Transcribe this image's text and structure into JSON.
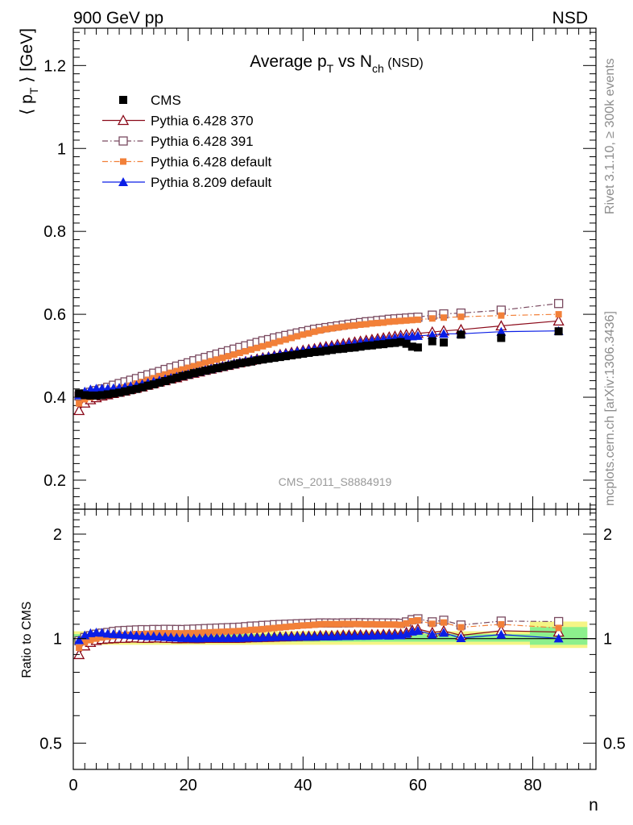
{
  "header": {
    "left": "900 GeV pp",
    "right": "NSD"
  },
  "side_labels": {
    "rivet": "Rivet 3.1.10, ≥ 300k events",
    "mcplots": "mcplots.cern.ch [arXiv:1306.3436]"
  },
  "chart_data": [
    {
      "type": "scatter",
      "panel": "main",
      "title_parts": {
        "pre": "Average p",
        "sub1": "T",
        "mid": " vs N",
        "sub2": "ch",
        "post": " (NSD)"
      },
      "ylabel_parts": {
        "pre": "⟨ p",
        "sub": "T",
        "post": " ⟩ [GeV]"
      },
      "xlabel": "n",
      "watermark": "CMS_2011_S8884919",
      "xlim": [
        0,
        91
      ],
      "ylim": [
        0.13,
        1.29
      ],
      "xticks": [
        0,
        20,
        40,
        60,
        80
      ],
      "yticks": [
        0.2,
        0.4,
        0.6,
        0.8,
        1,
        1.2
      ],
      "ytick_labels": [
        "0.2",
        "0.4",
        "0.6",
        "0.8",
        "1",
        "1.2"
      ],
      "legend_position": "top-left",
      "series": [
        {
          "name": "CMS",
          "color": "#000000",
          "marker": "filled-square",
          "line": "none",
          "x": [
            1,
            2,
            3,
            4,
            5,
            6,
            7,
            8,
            9,
            10,
            11,
            12,
            13,
            14,
            15,
            16,
            17,
            18,
            19,
            20,
            21,
            22,
            23,
            24,
            25,
            26,
            27,
            28,
            29,
            30,
            31,
            32,
            33,
            34,
            35,
            36,
            37,
            38,
            39,
            40,
            41,
            42,
            43,
            44,
            45,
            46,
            47,
            48,
            49,
            50,
            51,
            52,
            53,
            54,
            55,
            56,
            57,
            58,
            59,
            60,
            62.5,
            64.5,
            67.5,
            74.5,
            84.5
          ],
          "y": [
            0.409,
            0.405,
            0.404,
            0.404,
            0.405,
            0.407,
            0.409,
            0.411,
            0.414,
            0.417,
            0.42,
            0.424,
            0.428,
            0.431,
            0.435,
            0.439,
            0.443,
            0.447,
            0.451,
            0.454,
            0.458,
            0.461,
            0.464,
            0.467,
            0.47,
            0.473,
            0.476,
            0.479,
            0.482,
            0.484,
            0.486,
            0.489,
            0.491,
            0.493,
            0.495,
            0.497,
            0.499,
            0.501,
            0.503,
            0.505,
            0.507,
            0.509,
            0.51,
            0.512,
            0.514,
            0.516,
            0.517,
            0.519,
            0.52,
            0.522,
            0.524,
            0.525,
            0.527,
            0.528,
            0.53,
            0.531,
            0.533,
            0.529,
            0.522,
            0.52,
            0.535,
            0.532,
            0.551,
            0.543,
            0.559
          ]
        },
        {
          "name": "Pythia 6.428 370",
          "color": "#8b0a1a",
          "marker": "open-triangle",
          "line": "solid",
          "x": [
            1,
            2,
            3,
            4,
            5,
            6,
            7,
            8,
            9,
            10,
            11,
            12,
            13,
            14,
            15,
            16,
            17,
            18,
            19,
            20,
            21,
            22,
            23,
            24,
            25,
            26,
            27,
            28,
            29,
            30,
            31,
            32,
            33,
            34,
            35,
            36,
            37,
            38,
            39,
            40,
            41,
            42,
            43,
            44,
            45,
            46,
            47,
            48,
            49,
            50,
            51,
            52,
            53,
            54,
            55,
            56,
            57,
            58,
            59,
            60,
            62.5,
            64.5,
            67.5,
            74.5,
            84.5
          ],
          "y": [
            0.368,
            0.386,
            0.394,
            0.399,
            0.403,
            0.406,
            0.409,
            0.412,
            0.415,
            0.419,
            0.422,
            0.425,
            0.429,
            0.433,
            0.437,
            0.44,
            0.444,
            0.447,
            0.451,
            0.455,
            0.458,
            0.461,
            0.465,
            0.468,
            0.471,
            0.474,
            0.477,
            0.48,
            0.483,
            0.486,
            0.489,
            0.492,
            0.495,
            0.497,
            0.5,
            0.503,
            0.505,
            0.508,
            0.51,
            0.513,
            0.515,
            0.517,
            0.52,
            0.522,
            0.524,
            0.527,
            0.529,
            0.531,
            0.533,
            0.535,
            0.537,
            0.539,
            0.541,
            0.543,
            0.545,
            0.547,
            0.549,
            0.551,
            0.552,
            0.554,
            0.557,
            0.56,
            0.563,
            0.572,
            0.584
          ]
        },
        {
          "name": "Pythia 6.428 391",
          "color": "#7a4a60",
          "marker": "open-square",
          "line": "dash-dot",
          "x": [
            1,
            2,
            3,
            4,
            5,
            6,
            7,
            8,
            9,
            10,
            11,
            12,
            13,
            14,
            15,
            16,
            17,
            18,
            19,
            20,
            21,
            22,
            23,
            24,
            25,
            26,
            27,
            28,
            29,
            30,
            31,
            32,
            33,
            34,
            35,
            36,
            37,
            38,
            39,
            40,
            41,
            42,
            43,
            44,
            45,
            46,
            47,
            48,
            49,
            50,
            51,
            52,
            53,
            54,
            55,
            56,
            57,
            58,
            59,
            60,
            62.5,
            64.5,
            67.5,
            74.5,
            84.5
          ],
          "y": [
            0.403,
            0.408,
            0.412,
            0.416,
            0.42,
            0.424,
            0.429,
            0.433,
            0.437,
            0.441,
            0.445,
            0.45,
            0.454,
            0.458,
            0.462,
            0.467,
            0.471,
            0.475,
            0.479,
            0.483,
            0.488,
            0.492,
            0.496,
            0.5,
            0.504,
            0.508,
            0.512,
            0.516,
            0.52,
            0.524,
            0.528,
            0.532,
            0.536,
            0.539,
            0.543,
            0.546,
            0.549,
            0.552,
            0.555,
            0.558,
            0.561,
            0.564,
            0.566,
            0.568,
            0.57,
            0.572,
            0.574,
            0.576,
            0.578,
            0.58,
            0.582,
            0.583,
            0.585,
            0.586,
            0.588,
            0.589,
            0.59,
            0.591,
            0.592,
            0.593,
            0.598,
            0.601,
            0.603,
            0.61,
            0.626
          ]
        },
        {
          "name": "Pythia 6.428 default",
          "color": "#f28039",
          "marker": "filled-square-small",
          "line": "dash-dot",
          "x": [
            1,
            2,
            3,
            4,
            5,
            6,
            7,
            8,
            9,
            10,
            11,
            12,
            13,
            14,
            15,
            16,
            17,
            18,
            19,
            20,
            21,
            22,
            23,
            24,
            25,
            26,
            27,
            28,
            29,
            30,
            31,
            32,
            33,
            34,
            35,
            36,
            37,
            38,
            39,
            40,
            41,
            42,
            43,
            44,
            45,
            46,
            47,
            48,
            49,
            50,
            51,
            52,
            53,
            54,
            55,
            56,
            57,
            58,
            59,
            60,
            62.5,
            64.5,
            67.5,
            74.5,
            84.5
          ],
          "y": [
            0.385,
            0.395,
            0.4,
            0.404,
            0.408,
            0.412,
            0.416,
            0.42,
            0.424,
            0.428,
            0.433,
            0.437,
            0.442,
            0.446,
            0.451,
            0.455,
            0.459,
            0.463,
            0.467,
            0.471,
            0.475,
            0.479,
            0.483,
            0.487,
            0.491,
            0.495,
            0.499,
            0.503,
            0.507,
            0.511,
            0.515,
            0.519,
            0.523,
            0.527,
            0.531,
            0.535,
            0.539,
            0.543,
            0.547,
            0.551,
            0.554,
            0.558,
            0.561,
            0.564,
            0.566,
            0.568,
            0.57,
            0.572,
            0.573,
            0.575,
            0.576,
            0.578,
            0.579,
            0.58,
            0.582,
            0.583,
            0.584,
            0.585,
            0.586,
            0.587,
            0.59,
            0.592,
            0.594,
            0.597,
            0.6
          ]
        },
        {
          "name": "Pythia 8.209 default",
          "color": "#0a1ee6",
          "marker": "filled-triangle",
          "line": "solid",
          "x": [
            1,
            2,
            3,
            4,
            5,
            6,
            7,
            8,
            9,
            10,
            11,
            12,
            13,
            14,
            15,
            16,
            17,
            18,
            19,
            20,
            21,
            22,
            23,
            24,
            25,
            26,
            27,
            28,
            29,
            30,
            31,
            32,
            33,
            34,
            35,
            36,
            37,
            38,
            39,
            40,
            41,
            42,
            43,
            44,
            45,
            46,
            47,
            48,
            49,
            50,
            51,
            52,
            53,
            54,
            55,
            56,
            57,
            58,
            59,
            60,
            62.5,
            64.5,
            67.5,
            74.5,
            84.5
          ],
          "y": [
            0.405,
            0.414,
            0.419,
            0.421,
            0.421,
            0.421,
            0.422,
            0.423,
            0.425,
            0.427,
            0.429,
            0.432,
            0.435,
            0.438,
            0.441,
            0.444,
            0.447,
            0.45,
            0.453,
            0.456,
            0.459,
            0.462,
            0.466,
            0.469,
            0.472,
            0.475,
            0.478,
            0.481,
            0.484,
            0.487,
            0.49,
            0.492,
            0.495,
            0.498,
            0.5,
            0.503,
            0.505,
            0.507,
            0.51,
            0.512,
            0.514,
            0.516,
            0.518,
            0.52,
            0.522,
            0.524,
            0.526,
            0.528,
            0.53,
            0.532,
            0.534,
            0.536,
            0.538,
            0.54,
            0.541,
            0.543,
            0.545,
            0.546,
            0.547,
            0.548,
            0.55,
            0.553,
            0.553,
            0.558,
            0.56
          ]
        }
      ]
    },
    {
      "type": "line",
      "panel": "ratio",
      "ylabel": "Ratio to CMS",
      "xlabel": "n",
      "xlim": [
        0,
        91
      ],
      "ylim": [
        0.42,
        2.36
      ],
      "log_y": true,
      "xticks": [
        0,
        20,
        40,
        60,
        80
      ],
      "xtick_labels": [
        "0",
        "20",
        "40",
        "60",
        "80"
      ],
      "yticks": [
        0.5,
        1,
        2
      ],
      "ytick_labels": [
        "0.5",
        "1",
        "2"
      ],
      "uncertainty_bands": {
        "outer_color": "#f5f585",
        "inner_color": "#8cf08c",
        "segments": [
          {
            "x": [
              0,
              79.5
            ],
            "outer": [
              0.96,
              1.05
            ],
            "inner": [
              0.98,
              1.03
            ]
          },
          {
            "x": [
              79.5,
              89.5
            ],
            "outer": [
              0.94,
              1.12
            ],
            "inner": [
              0.96,
              1.08
            ]
          }
        ]
      },
      "series": [
        {
          "name": "Pythia 6.428 370",
          "color": "#8b0a1a"
        },
        {
          "name": "Pythia 6.428 391",
          "color": "#7a4a60"
        },
        {
          "name": "Pythia 6.428 default",
          "color": "#f28039"
        },
        {
          "name": "Pythia 8.209 default",
          "color": "#0a1ee6"
        }
      ]
    }
  ]
}
